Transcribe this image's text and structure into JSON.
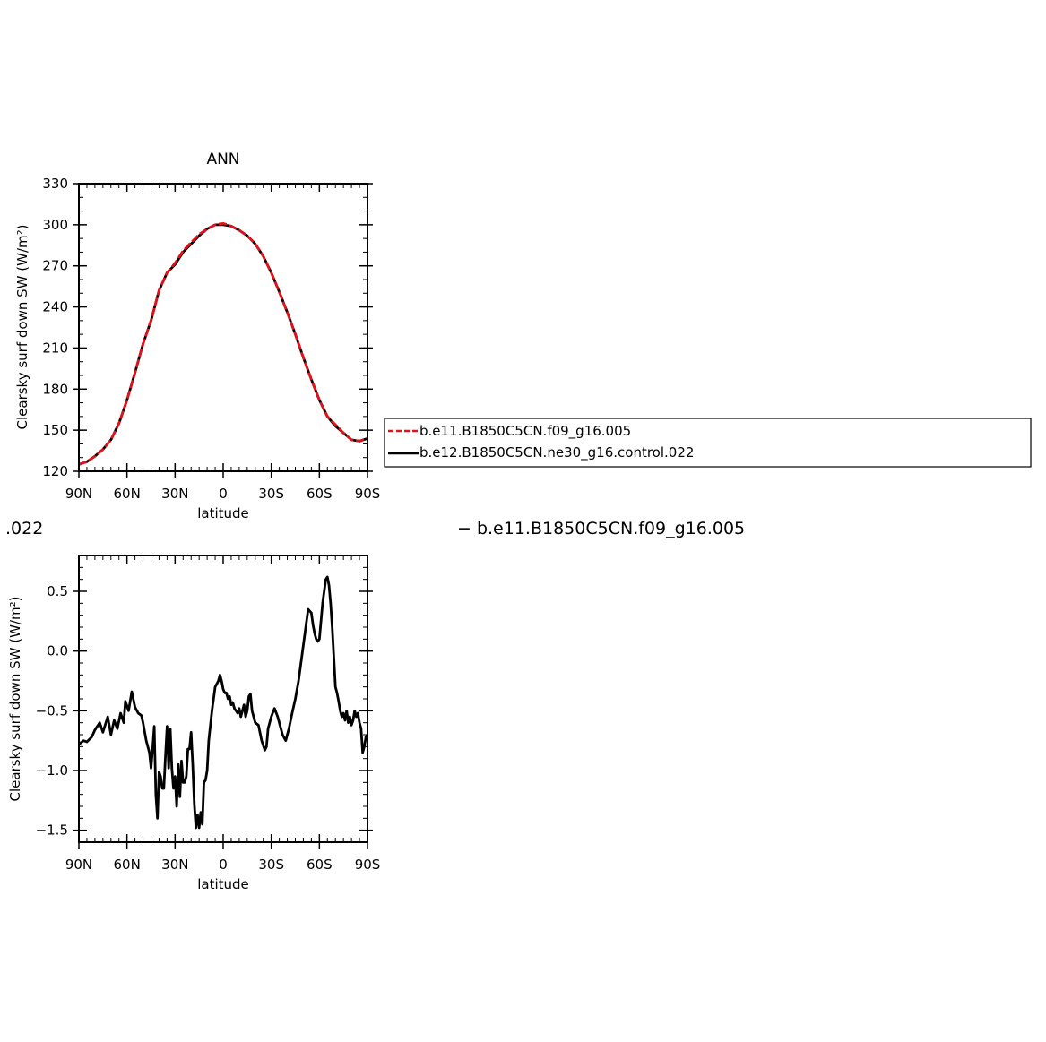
{
  "chart_data": [
    {
      "type": "line",
      "title": "ANN",
      "xlabel": "latitude",
      "ylabel": "Clearsky surf down SW (W/m²)",
      "x_ticks": [
        "90N",
        "60N",
        "30N",
        "0",
        "30S",
        "60S",
        "90S"
      ],
      "y_ticks": [
        "120",
        "150",
        "180",
        "210",
        "240",
        "270",
        "300",
        "330"
      ],
      "xlim": [
        -90,
        90
      ],
      "ylim": [
        120,
        330
      ],
      "x": [
        -90,
        -85,
        -80,
        -75,
        -70,
        -65,
        -60,
        -55,
        -50,
        -45,
        -40,
        -35,
        -30,
        -25,
        -20,
        -15,
        -10,
        -5,
        0,
        5,
        10,
        15,
        20,
        25,
        30,
        35,
        40,
        45,
        50,
        55,
        60,
        65,
        70,
        75,
        80,
        85,
        90
      ],
      "series": [
        {
          "name": "b.e11.B1850C5CN.f09_g16.005",
          "color": "#e4111b",
          "style": "dashed",
          "values": [
            125,
            127,
            131,
            136,
            143,
            155,
            172,
            192,
            213,
            230,
            252,
            265,
            272,
            281,
            287,
            293,
            297,
            300,
            301,
            299,
            296,
            292,
            286,
            277,
            265,
            251,
            236,
            220,
            203,
            187,
            172,
            160,
            154,
            148,
            143,
            142,
            144
          ]
        },
        {
          "name": "b.e12.B1850C5CN.ne30_g16.control.022",
          "color": "#000000",
          "style": "solid",
          "values": [
            125,
            127,
            131,
            136,
            143,
            155,
            172,
            192,
            213,
            230,
            252,
            265,
            271,
            280,
            286,
            292,
            297,
            300,
            300,
            299,
            296,
            292,
            286,
            277,
            265,
            251,
            236,
            220,
            203,
            187,
            172,
            160,
            153,
            148,
            143,
            142,
            144
          ]
        }
      ]
    },
    {
      "type": "line",
      "title": "",
      "xlabel": "latitude",
      "ylabel": "Clearsky surf down SW (W/m²)",
      "x_ticks": [
        "90N",
        "60N",
        "30N",
        "0",
        "30S",
        "60S",
        "90S"
      ],
      "y_ticks": [
        "−1.5",
        "−1.0",
        "−0.5",
        "0.0",
        "0.5"
      ],
      "xlim": [
        -90,
        90
      ],
      "ylim": [
        -1.6,
        0.8
      ],
      "x": [
        -90,
        -87,
        -85,
        -82,
        -80,
        -77,
        -75,
        -72,
        -70,
        -68,
        -66,
        -64,
        -62,
        -61,
        -59,
        -57,
        -55,
        -53,
        -51,
        -50,
        -48,
        -46,
        -45,
        -44,
        -43,
        -42,
        -41,
        -40,
        -39,
        -38,
        -37,
        -36,
        -35,
        -34,
        -33,
        -32,
        -31,
        -30,
        -29,
        -28,
        -27,
        -26,
        -25,
        -24,
        -23,
        -22,
        -21,
        -20,
        -19,
        -18,
        -17,
        -16,
        -15,
        -14,
        -13,
        -12,
        -11,
        -10,
        -9,
        -7,
        -5,
        -3,
        -2,
        -1,
        0,
        1,
        2,
        3,
        4,
        5,
        6,
        7,
        8,
        9,
        10,
        11,
        12,
        13,
        14,
        15,
        16,
        17,
        18,
        20,
        22,
        24,
        26,
        27,
        28,
        30,
        32,
        34,
        35,
        37,
        39,
        41,
        43,
        45,
        47,
        49,
        51,
        53,
        55,
        56,
        57,
        58,
        59,
        60,
        62,
        64,
        65,
        66,
        67,
        68,
        69,
        70,
        71,
        72,
        73,
        74,
        75,
        76,
        77,
        78,
        79,
        80,
        81,
        82,
        83,
        84,
        85,
        86,
        87,
        88,
        89,
        90
      ],
      "series": [
        {
          "name": "",
          "color": "#000000",
          "style": "solid",
          "values": [
            -0.78,
            -0.75,
            -0.76,
            -0.72,
            -0.66,
            -0.6,
            -0.68,
            -0.55,
            -0.7,
            -0.58,
            -0.65,
            -0.52,
            -0.6,
            -0.42,
            -0.5,
            -0.34,
            -0.47,
            -0.52,
            -0.54,
            -0.6,
            -0.75,
            -0.85,
            -0.98,
            -0.82,
            -0.63,
            -1.2,
            -1.4,
            -1.01,
            -1.05,
            -1.15,
            -1.15,
            -0.88,
            -0.63,
            -0.98,
            -0.65,
            -0.98,
            -1.15,
            -1.05,
            -1.3,
            -0.95,
            -1.22,
            -0.92,
            -1.1,
            -1.1,
            -1.05,
            -0.82,
            -0.82,
            -0.68,
            -0.95,
            -1.28,
            -1.48,
            -1.37,
            -1.48,
            -1.35,
            -1.45,
            -1.1,
            -1.08,
            -1.0,
            -0.75,
            -0.5,
            -0.3,
            -0.25,
            -0.2,
            -0.25,
            -0.32,
            -0.35,
            -0.35,
            -0.4,
            -0.38,
            -0.45,
            -0.43,
            -0.48,
            -0.5,
            -0.52,
            -0.48,
            -0.55,
            -0.5,
            -0.45,
            -0.55,
            -0.5,
            -0.38,
            -0.36,
            -0.5,
            -0.6,
            -0.62,
            -0.75,
            -0.83,
            -0.8,
            -0.65,
            -0.55,
            -0.48,
            -0.55,
            -0.6,
            -0.7,
            -0.75,
            -0.65,
            -0.52,
            -0.4,
            -0.25,
            -0.05,
            0.15,
            0.35,
            0.32,
            0.22,
            0.15,
            0.1,
            0.08,
            0.1,
            0.4,
            0.6,
            0.62,
            0.55,
            0.4,
            0.2,
            -0.05,
            -0.3,
            -0.35,
            -0.42,
            -0.5,
            -0.55,
            -0.52,
            -0.58,
            -0.5,
            -0.6,
            -0.55,
            -0.62,
            -0.58,
            -0.5,
            -0.55,
            -0.52,
            -0.6,
            -0.65,
            -0.85,
            -0.8,
            -0.72,
            -0.7
          ]
        }
      ]
    }
  ],
  "fragments": {
    "left": ".022",
    "right": "− b.e11.B1850C5CN.f09_g16.005"
  }
}
